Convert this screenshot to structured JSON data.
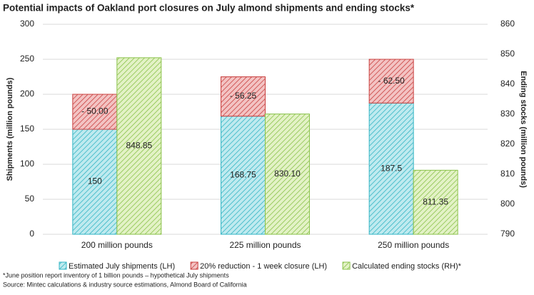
{
  "chart_data": {
    "type": "bar",
    "title": "Potential impacts of Oakland port closures on July almond shipments and ending stocks*",
    "ylabel": "Shipments (million pounds)",
    "y2label": "Ending stocks (million pounds)",
    "categories": [
      "200 million pounds",
      "225 million pounds",
      "250 million pounds"
    ],
    "series": [
      {
        "name": "Estimated July shipments (LH)",
        "color": "#33b5c4",
        "fill": "#bfeaef",
        "values": [
          150,
          168.75,
          187.5
        ],
        "stack": "a"
      },
      {
        "name": "20% reduction - 1 week closure (LH)",
        "color": "#c9403f",
        "fill": "#f3c3c3",
        "values": [
          50,
          56.25,
          62.5
        ],
        "value_labels": [
          "- 50.00",
          "- 56.25",
          "- 62.50"
        ],
        "stack": "a"
      },
      {
        "name": "Calculated ending stocks (RH)*",
        "color": "#8ac24a",
        "fill": "#e3f2c6",
        "values": [
          848.85,
          830.1,
          811.35
        ],
        "value_labels": [
          "848.85",
          "830.10",
          "811.35"
        ],
        "axis": "y2"
      }
    ],
    "ylim": [
      0,
      300
    ],
    "yticks": [
      0,
      50,
      100,
      150,
      200,
      250,
      300
    ],
    "y2lim": [
      790,
      860
    ],
    "y2ticks": [
      790,
      800,
      810,
      820,
      830,
      840,
      850,
      860
    ],
    "grid": true,
    "legend": "bottom",
    "notes": [
      "*June position report inventory of 1 billion pounds – hypothetical July shipments",
      "Source: Mintec calculations & industry source estimations, Almond Board of California"
    ]
  }
}
